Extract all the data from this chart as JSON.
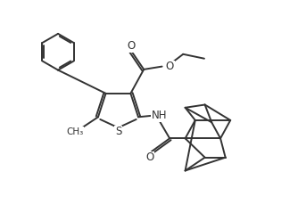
{
  "bg_color": "#ffffff",
  "line_color": "#333333",
  "line_width": 1.4,
  "figsize": [
    3.34,
    2.48
  ],
  "dpi": 100,
  "xlim": [
    0,
    10
  ],
  "ylim": [
    0,
    7.5
  ]
}
